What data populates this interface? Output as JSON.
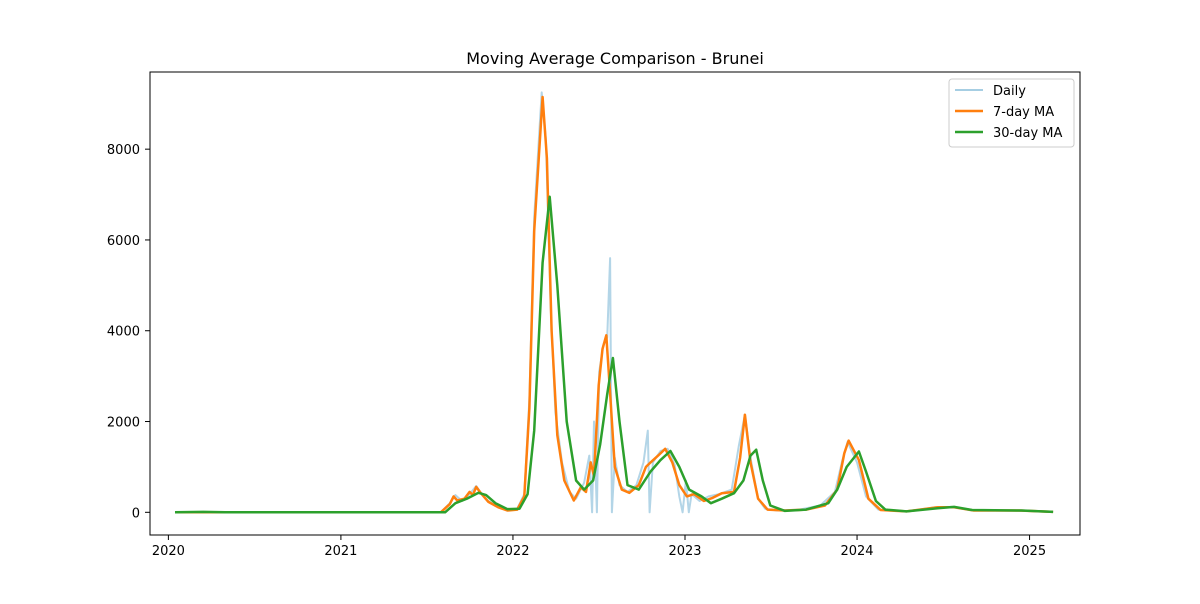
{
  "chart_data": {
    "type": "line",
    "title": "Moving Average Comparison - Brunei",
    "xlabel": "",
    "ylabel": "",
    "xlim": [
      "2019-11-23",
      "2025-04-18"
    ],
    "ylim": [
      -500,
      9700
    ],
    "grid": false,
    "legend_position": "top-right",
    "x_ticks": [
      "2020",
      "2021",
      "2022",
      "2023",
      "2024",
      "2025"
    ],
    "y_ticks": [
      0,
      2000,
      4000,
      6000,
      8000
    ],
    "series": [
      {
        "name": "Daily",
        "color": "#a6cee3",
        "points": [
          [
            "2020-01-15",
            0
          ],
          [
            "2021-08-01",
            0
          ],
          [
            "2021-08-20",
            200
          ],
          [
            "2021-09-01",
            380
          ],
          [
            "2021-09-15",
            250
          ],
          [
            "2021-10-01",
            400
          ],
          [
            "2021-10-15",
            580
          ],
          [
            "2021-10-25",
            430
          ],
          [
            "2021-11-10",
            250
          ],
          [
            "2021-12-01",
            120
          ],
          [
            "2021-12-20",
            40
          ],
          [
            "2022-01-10",
            80
          ],
          [
            "2022-01-25",
            400
          ],
          [
            "2022-02-05",
            2500
          ],
          [
            "2022-02-15",
            6500
          ],
          [
            "2022-03-03",
            9250
          ],
          [
            "2022-03-12",
            8200
          ],
          [
            "2022-03-22",
            4500
          ],
          [
            "2022-04-01",
            2200
          ],
          [
            "2022-04-15",
            1100
          ],
          [
            "2022-05-01",
            450
          ],
          [
            "2022-05-15",
            300
          ],
          [
            "2022-06-01",
            650
          ],
          [
            "2022-06-12",
            1250
          ],
          [
            "2022-06-18",
            0
          ],
          [
            "2022-06-22",
            2000
          ],
          [
            "2022-06-28",
            0
          ],
          [
            "2022-07-03",
            3100
          ],
          [
            "2022-07-12",
            3700
          ],
          [
            "2022-07-20",
            3850
          ],
          [
            "2022-07-26",
            5600
          ],
          [
            "2022-07-30",
            0
          ],
          [
            "2022-08-05",
            1200
          ],
          [
            "2022-08-15",
            600
          ],
          [
            "2022-09-01",
            450
          ],
          [
            "2022-09-20",
            600
          ],
          [
            "2022-10-05",
            1100
          ],
          [
            "2022-10-14",
            1800
          ],
          [
            "2022-10-18",
            0
          ],
          [
            "2022-10-25",
            1100
          ],
          [
            "2022-11-10",
            1350
          ],
          [
            "2022-11-25",
            1400
          ],
          [
            "2022-12-10",
            1050
          ],
          [
            "2022-12-20",
            350
          ],
          [
            "2022-12-27",
            0
          ],
          [
            "2023-01-03",
            700
          ],
          [
            "2023-01-09",
            0
          ],
          [
            "2023-01-15",
            400
          ],
          [
            "2023-02-01",
            250
          ],
          [
            "2023-02-20",
            350
          ],
          [
            "2023-03-15",
            400
          ],
          [
            "2023-04-10",
            500
          ],
          [
            "2023-04-25",
            1450
          ],
          [
            "2023-05-08",
            2150
          ],
          [
            "2023-05-20",
            1200
          ],
          [
            "2023-06-05",
            300
          ],
          [
            "2023-06-20",
            80
          ],
          [
            "2023-07-15",
            40
          ],
          [
            "2023-09-01",
            60
          ],
          [
            "2023-10-15",
            150
          ],
          [
            "2023-11-15",
            450
          ],
          [
            "2023-12-01",
            1150
          ],
          [
            "2023-12-12",
            1550
          ],
          [
            "2024-01-01",
            1100
          ],
          [
            "2024-01-20",
            350
          ],
          [
            "2024-02-15",
            60
          ],
          [
            "2024-04-15",
            20
          ],
          [
            "2024-06-15",
            110
          ],
          [
            "2024-07-20",
            120
          ],
          [
            "2024-09-01",
            40
          ],
          [
            "2024-12-01",
            40
          ],
          [
            "2025-02-20",
            10
          ]
        ]
      },
      {
        "name": "7-day MA",
        "color": "#ff7f0e",
        "points": [
          [
            "2020-01-15",
            0
          ],
          [
            "2021-08-01",
            0
          ],
          [
            "2021-08-20",
            180
          ],
          [
            "2021-08-28",
            350
          ],
          [
            "2021-09-05",
            260
          ],
          [
            "2021-09-20",
            300
          ],
          [
            "2021-10-01",
            450
          ],
          [
            "2021-10-08",
            380
          ],
          [
            "2021-10-15",
            560
          ],
          [
            "2021-10-25",
            420
          ],
          [
            "2021-11-10",
            230
          ],
          [
            "2021-12-01",
            110
          ],
          [
            "2021-12-20",
            40
          ],
          [
            "2022-01-10",
            60
          ],
          [
            "2022-01-25",
            350
          ],
          [
            "2022-02-05",
            2300
          ],
          [
            "2022-02-15",
            6200
          ],
          [
            "2022-03-05",
            9150
          ],
          [
            "2022-03-14",
            7800
          ],
          [
            "2022-03-24",
            4000
          ],
          [
            "2022-04-05",
            1700
          ],
          [
            "2022-04-20",
            700
          ],
          [
            "2022-05-10",
            260
          ],
          [
            "2022-05-25",
            550
          ],
          [
            "2022-06-05",
            450
          ],
          [
            "2022-06-15",
            1100
          ],
          [
            "2022-06-22",
            800
          ],
          [
            "2022-07-02",
            2800
          ],
          [
            "2022-07-10",
            3600
          ],
          [
            "2022-07-18",
            3900
          ],
          [
            "2022-07-25",
            2800
          ],
          [
            "2022-08-05",
            1000
          ],
          [
            "2022-08-20",
            500
          ],
          [
            "2022-09-05",
            430
          ],
          [
            "2022-09-25",
            600
          ],
          [
            "2022-10-10",
            1000
          ],
          [
            "2022-10-20",
            1100
          ],
          [
            "2022-11-05",
            1250
          ],
          [
            "2022-11-20",
            1400
          ],
          [
            "2022-12-05",
            1100
          ],
          [
            "2022-12-20",
            600
          ],
          [
            "2023-01-05",
            350
          ],
          [
            "2023-01-20",
            400
          ],
          [
            "2023-02-10",
            250
          ],
          [
            "2023-03-01",
            320
          ],
          [
            "2023-03-20",
            420
          ],
          [
            "2023-04-15",
            450
          ],
          [
            "2023-04-28",
            1200
          ],
          [
            "2023-05-08",
            2150
          ],
          [
            "2023-05-20",
            1100
          ],
          [
            "2023-06-05",
            300
          ],
          [
            "2023-06-25",
            60
          ],
          [
            "2023-08-01",
            40
          ],
          [
            "2023-09-15",
            60
          ],
          [
            "2023-10-25",
            150
          ],
          [
            "2023-11-20",
            500
          ],
          [
            "2023-12-05",
            1300
          ],
          [
            "2023-12-14",
            1580
          ],
          [
            "2024-01-05",
            1150
          ],
          [
            "2024-01-25",
            300
          ],
          [
            "2024-02-20",
            50
          ],
          [
            "2024-04-15",
            20
          ],
          [
            "2024-06-20",
            110
          ],
          [
            "2024-07-25",
            110
          ],
          [
            "2024-09-05",
            40
          ],
          [
            "2024-12-10",
            40
          ],
          [
            "2025-02-20",
            10
          ]
        ]
      },
      {
        "name": "30-day MA",
        "color": "#2ca02c",
        "points": [
          [
            "2020-01-15",
            0
          ],
          [
            "2020-03-15",
            10
          ],
          [
            "2020-05-01",
            0
          ],
          [
            "2021-08-10",
            0
          ],
          [
            "2021-09-01",
            200
          ],
          [
            "2021-09-25",
            300
          ],
          [
            "2021-10-20",
            430
          ],
          [
            "2021-11-05",
            380
          ],
          [
            "2021-11-25",
            200
          ],
          [
            "2021-12-20",
            70
          ],
          [
            "2022-01-15",
            80
          ],
          [
            "2022-02-01",
            400
          ],
          [
            "2022-02-15",
            1800
          ],
          [
            "2022-03-05",
            5500
          ],
          [
            "2022-03-20",
            6950
          ],
          [
            "2022-04-05",
            5000
          ],
          [
            "2022-04-25",
            2000
          ],
          [
            "2022-05-15",
            700
          ],
          [
            "2022-06-01",
            500
          ],
          [
            "2022-06-20",
            700
          ],
          [
            "2022-07-05",
            1500
          ],
          [
            "2022-07-20",
            2600
          ],
          [
            "2022-08-01",
            3400
          ],
          [
            "2022-08-15",
            2000
          ],
          [
            "2022-09-01",
            600
          ],
          [
            "2022-09-25",
            500
          ],
          [
            "2022-10-20",
            900
          ],
          [
            "2022-11-10",
            1150
          ],
          [
            "2022-12-01",
            1350
          ],
          [
            "2022-12-20",
            1000
          ],
          [
            "2023-01-10",
            500
          ],
          [
            "2023-02-05",
            350
          ],
          [
            "2023-02-25",
            200
          ],
          [
            "2023-03-20",
            300
          ],
          [
            "2023-04-15",
            420
          ],
          [
            "2023-05-05",
            700
          ],
          [
            "2023-05-20",
            1250
          ],
          [
            "2023-06-01",
            1380
          ],
          [
            "2023-06-15",
            700
          ],
          [
            "2023-07-01",
            150
          ],
          [
            "2023-08-01",
            30
          ],
          [
            "2023-09-15",
            60
          ],
          [
            "2023-11-01",
            200
          ],
          [
            "2023-11-20",
            500
          ],
          [
            "2023-12-10",
            1000
          ],
          [
            "2024-01-05",
            1340
          ],
          [
            "2024-01-20",
            900
          ],
          [
            "2024-02-10",
            250
          ],
          [
            "2024-03-01",
            60
          ],
          [
            "2024-04-15",
            20
          ],
          [
            "2024-06-20",
            90
          ],
          [
            "2024-07-25",
            120
          ],
          [
            "2024-09-01",
            50
          ],
          [
            "2024-12-15",
            40
          ],
          [
            "2025-02-20",
            10
          ]
        ]
      }
    ]
  }
}
